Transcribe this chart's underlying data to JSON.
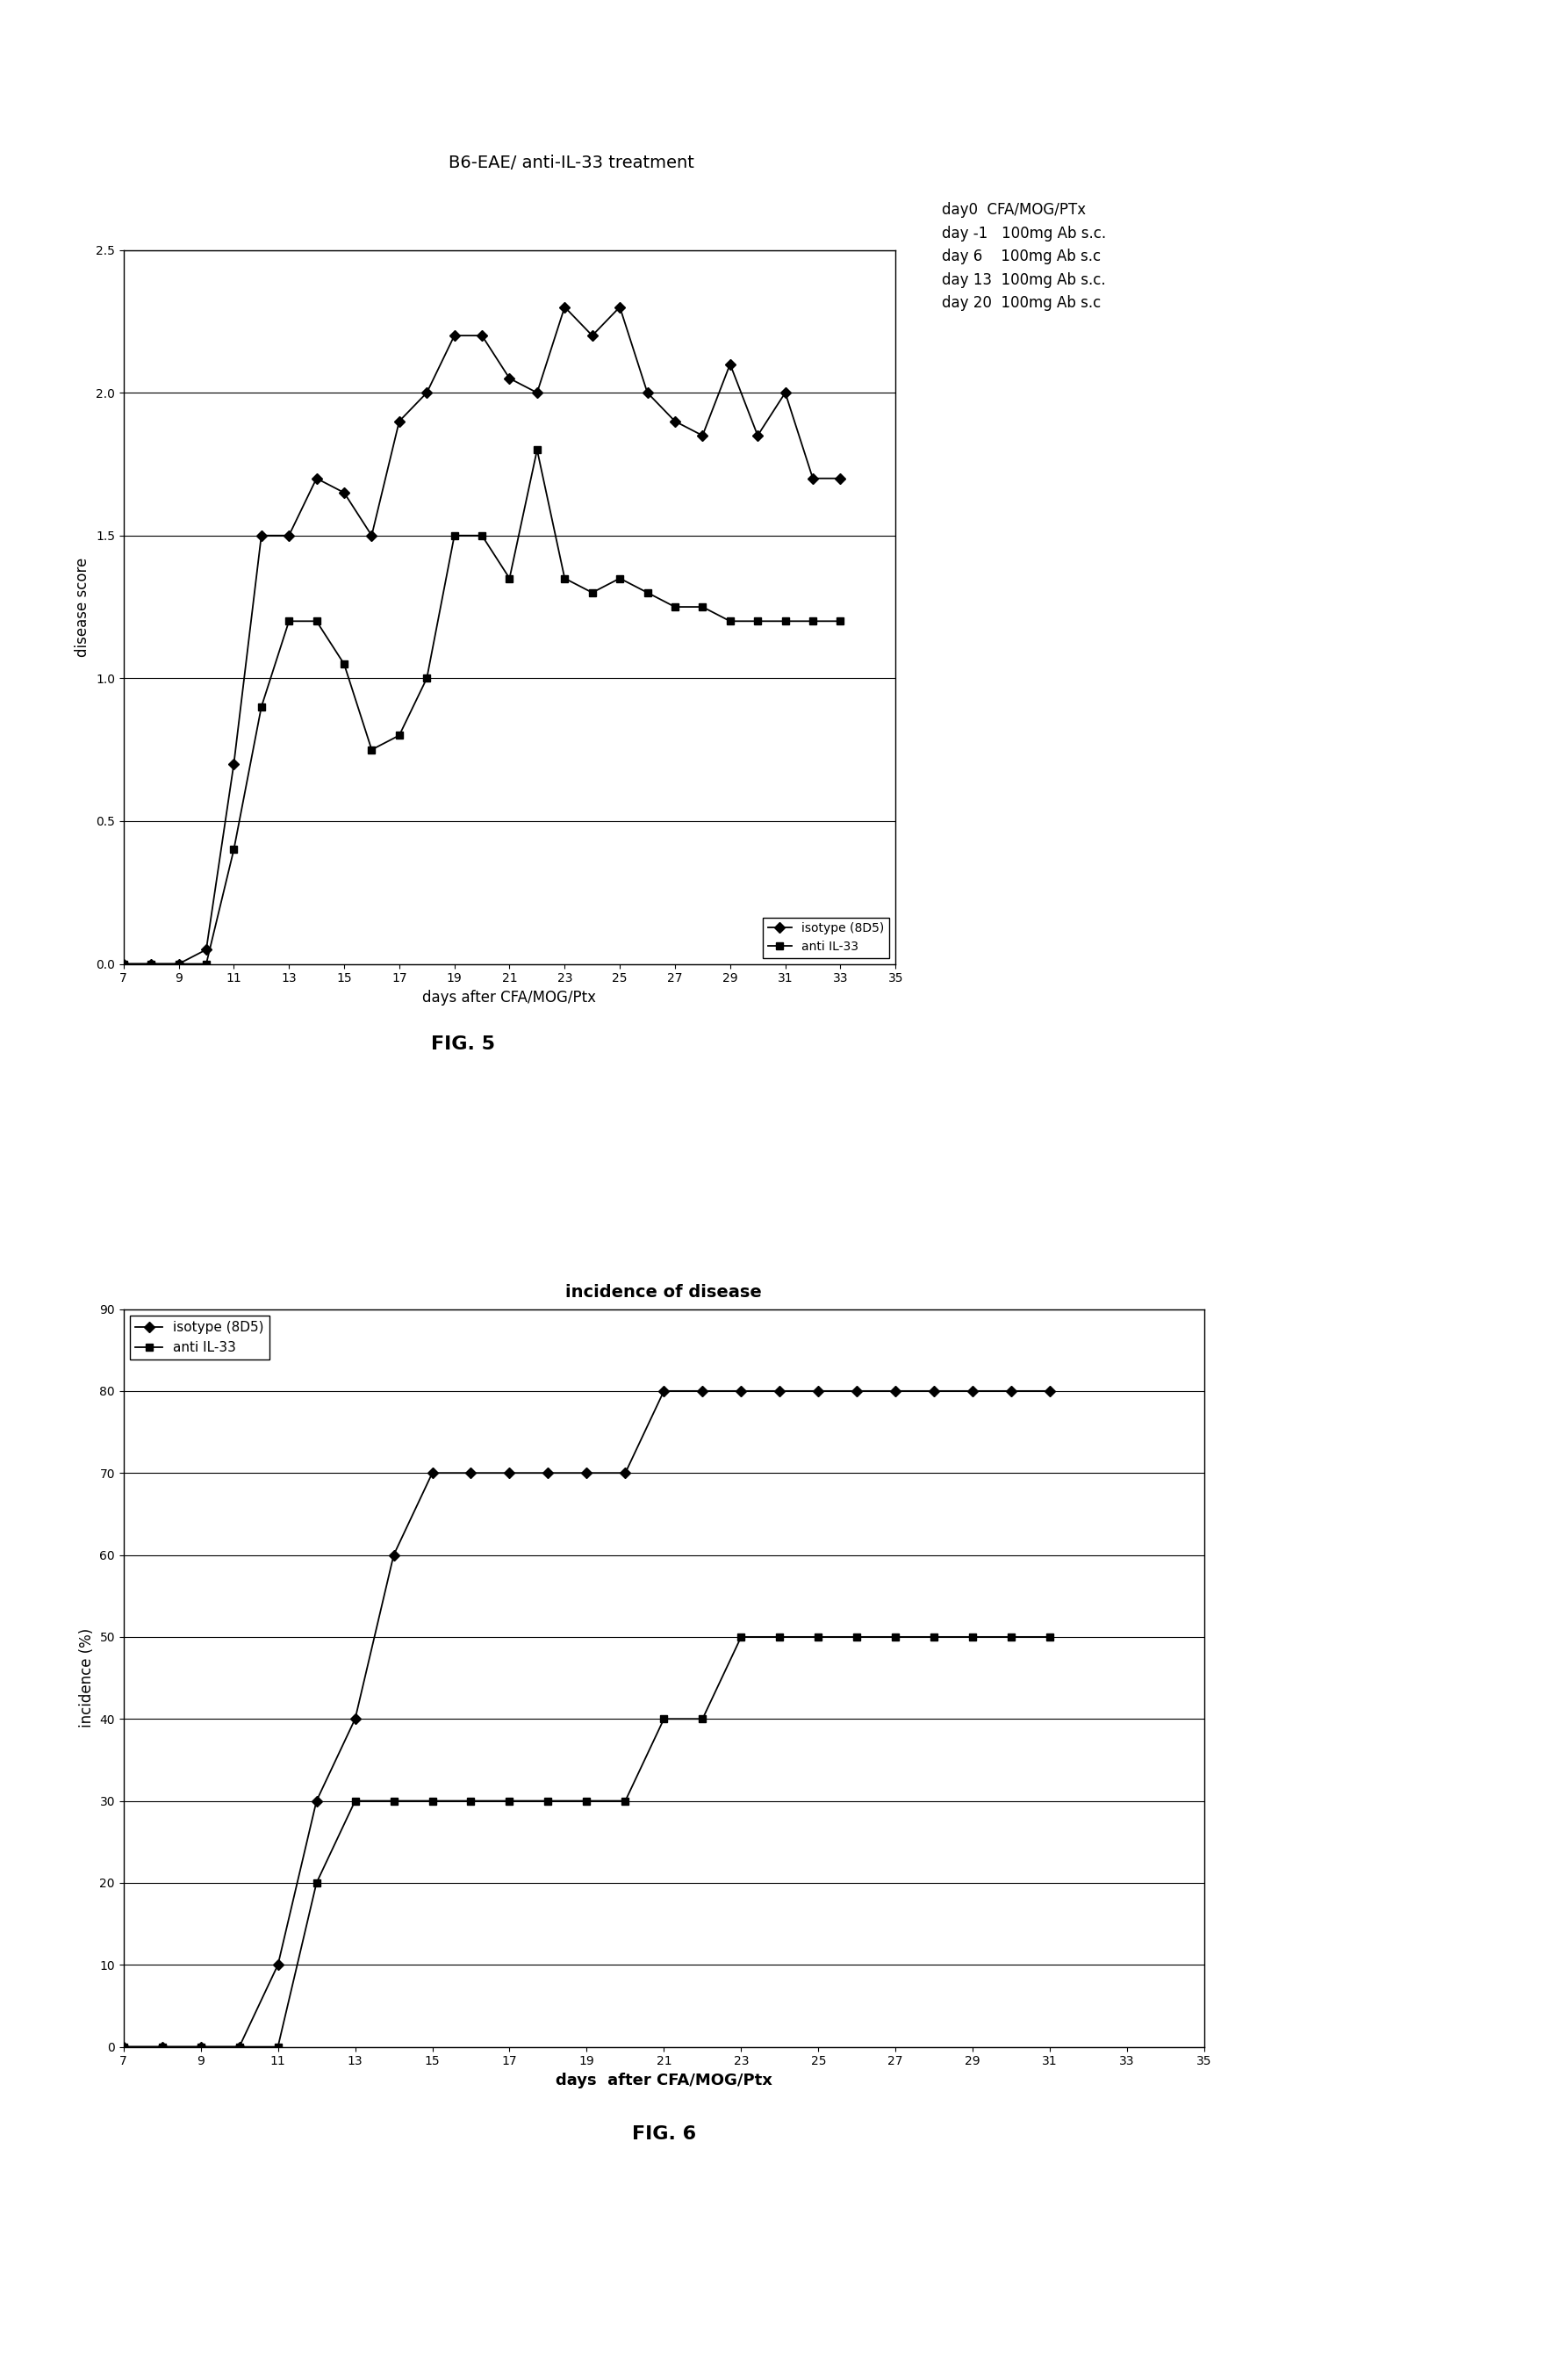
{
  "fig1": {
    "title": "B6-EAE/ anti-IL-33 treatment",
    "xlabel": "days after CFA/MOG/Ptx",
    "ylabel": "disease score",
    "xlim": [
      7,
      35
    ],
    "ylim": [
      0,
      2.5
    ],
    "xticks": [
      7,
      9,
      11,
      13,
      15,
      17,
      19,
      21,
      23,
      25,
      27,
      29,
      31,
      33,
      35
    ],
    "yticks": [
      0,
      0.5,
      1,
      1.5,
      2,
      2.5
    ],
    "isotype_x": [
      7,
      8,
      9,
      10,
      11,
      12,
      13,
      14,
      15,
      16,
      17,
      18,
      19,
      20,
      21,
      22,
      23,
      24,
      25,
      26,
      27,
      28,
      29,
      30,
      31,
      32,
      33
    ],
    "isotype_y": [
      0,
      0,
      0,
      0.05,
      0.7,
      1.5,
      1.5,
      1.7,
      1.65,
      1.5,
      1.9,
      2.0,
      2.2,
      2.2,
      2.05,
      2.0,
      2.3,
      2.2,
      2.3,
      2.0,
      1.9,
      1.85,
      2.1,
      1.85,
      2.0,
      1.7,
      1.7
    ],
    "antiil33_x": [
      7,
      8,
      9,
      10,
      11,
      12,
      13,
      14,
      15,
      16,
      17,
      18,
      19,
      20,
      21,
      22,
      23,
      24,
      25,
      26,
      27,
      28,
      29,
      30,
      31,
      32,
      33
    ],
    "antiil33_y": [
      0,
      0,
      0,
      0.0,
      0.4,
      0.9,
      1.2,
      1.2,
      1.05,
      0.75,
      0.8,
      1.0,
      1.5,
      1.5,
      1.35,
      1.8,
      1.35,
      1.3,
      1.35,
      1.3,
      1.25,
      1.25,
      1.2,
      1.2,
      1.2,
      1.2,
      1.2
    ],
    "legend_isotype": "isotype (8D5)",
    "legend_anti": "anti IL-33",
    "annotation_lines": [
      "day0  CFA/MOG/PTx",
      "day -1   100mg Ab s.c.",
      "day 6    100mg Ab s.c",
      "day 13  100mg Ab s.c.",
      "day 20  100mg Ab s.c"
    ],
    "fig_label": "FIG. 5"
  },
  "fig2": {
    "title": "incidence of disease",
    "xlabel": "days  after CFA/MOG/Ptx",
    "ylabel": "incidence (%)",
    "xlim": [
      7,
      35
    ],
    "ylim": [
      0,
      90
    ],
    "xticks": [
      7,
      9,
      11,
      13,
      15,
      17,
      19,
      21,
      23,
      25,
      27,
      29,
      31,
      33,
      35
    ],
    "yticks": [
      0,
      10,
      20,
      30,
      40,
      50,
      60,
      70,
      80,
      90
    ],
    "isotype_x": [
      7,
      8,
      9,
      10,
      11,
      12,
      13,
      14,
      15,
      16,
      17,
      18,
      19,
      20,
      21,
      22,
      23,
      24,
      25,
      26,
      27,
      28,
      29,
      30,
      31
    ],
    "isotype_y": [
      0,
      0,
      0,
      0,
      10,
      30,
      40,
      60,
      70,
      70,
      70,
      70,
      70,
      70,
      80,
      80,
      80,
      80,
      80,
      80,
      80,
      80,
      80,
      80,
      80
    ],
    "antiil33_x": [
      7,
      8,
      9,
      10,
      11,
      12,
      13,
      14,
      15,
      16,
      17,
      18,
      19,
      20,
      21,
      22,
      23,
      24,
      25,
      26,
      27,
      28,
      29,
      30,
      31
    ],
    "antiil33_y": [
      0,
      0,
      0,
      0,
      0,
      20,
      30,
      30,
      30,
      30,
      30,
      30,
      30,
      30,
      40,
      40,
      50,
      50,
      50,
      50,
      50,
      50,
      50,
      50,
      50
    ],
    "legend_isotype": "isotype (8D5)",
    "legend_anti": "anti IL-33",
    "fig_label": "FIG. 6"
  },
  "background_color": "#ffffff",
  "line_color": "#000000"
}
